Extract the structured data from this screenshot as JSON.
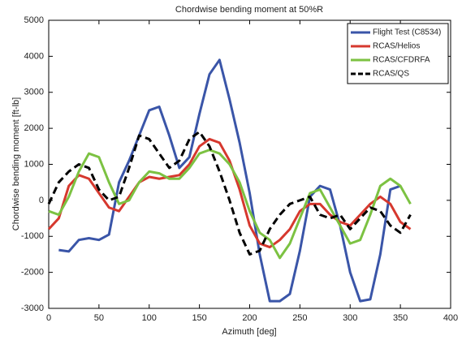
{
  "chart_data": {
    "type": "line",
    "title": "Chordwise bending moment at 50%R",
    "xlabel": "Azimuth [deg]",
    "ylabel": "Chordwise bending moment [ft-lb]",
    "x": [
      0,
      10,
      20,
      30,
      40,
      50,
      60,
      70,
      80,
      90,
      100,
      110,
      120,
      130,
      140,
      150,
      160,
      170,
      180,
      190,
      200,
      210,
      220,
      230,
      240,
      250,
      260,
      270,
      280,
      290,
      300,
      310,
      320,
      330,
      340,
      350,
      360
    ],
    "series": [
      {
        "name": "Flight Test (C8534)",
        "color": "#3a55a8",
        "dash": false,
        "values": [
          null,
          -1380,
          -1420,
          -1100,
          -1050,
          -1100,
          -950,
          500,
          1100,
          1800,
          2500,
          2600,
          1800,
          900,
          1200,
          2400,
          3500,
          3900,
          2800,
          1600,
          200,
          -1500,
          -2800,
          -2800,
          -2600,
          -1400,
          100,
          400,
          300,
          -700,
          -2000,
          -2800,
          -2750,
          -1500,
          300,
          400,
          null
        ]
      },
      {
        "name": "RCAS/Helios",
        "color": "#d6382e",
        "dash": false,
        "values": [
          -800,
          -500,
          400,
          700,
          600,
          200,
          -200,
          -300,
          100,
          500,
          650,
          600,
          650,
          700,
          1000,
          1500,
          1700,
          1600,
          1100,
          300,
          -700,
          -1200,
          -1300,
          -1100,
          -800,
          -300,
          -100,
          -100,
          -400,
          -600,
          -700,
          -400,
          -100,
          100,
          -100,
          -600,
          -800
        ]
      },
      {
        "name": "RCAS/CFDRFA",
        "color": "#7cc242",
        "dash": false,
        "values": [
          -300,
          -400,
          100,
          800,
          1300,
          1200,
          500,
          -100,
          0,
          500,
          800,
          750,
          600,
          600,
          900,
          1300,
          1400,
          1300,
          1000,
          500,
          -300,
          -900,
          -1100,
          -1600,
          -1200,
          -500,
          200,
          300,
          -200,
          -700,
          -1200,
          -1100,
          -400,
          400,
          600,
          400,
          -100
        ]
      },
      {
        "name": "RCAS/QS",
        "color": "#000000",
        "dash": true,
        "values": [
          -100,
          500,
          800,
          1000,
          900,
          300,
          0,
          100,
          900,
          1800,
          1700,
          1300,
          900,
          1100,
          1700,
          1900,
          1500,
          800,
          0,
          -900,
          -1500,
          -1400,
          -800,
          -400,
          -100,
          0,
          100,
          -400,
          -500,
          -400,
          -800,
          -500,
          -200,
          -300,
          -700,
          -900,
          -400
        ]
      }
    ],
    "xlim": [
      0,
      400
    ],
    "xticks": [
      0,
      50,
      100,
      150,
      200,
      250,
      300,
      350,
      400
    ],
    "ylim": [
      -3000,
      5000
    ],
    "yticks": [
      -3000,
      -2000,
      -1000,
      0,
      1000,
      2000,
      3000,
      4000,
      5000
    ],
    "grid": false,
    "legend": "upper right"
  }
}
